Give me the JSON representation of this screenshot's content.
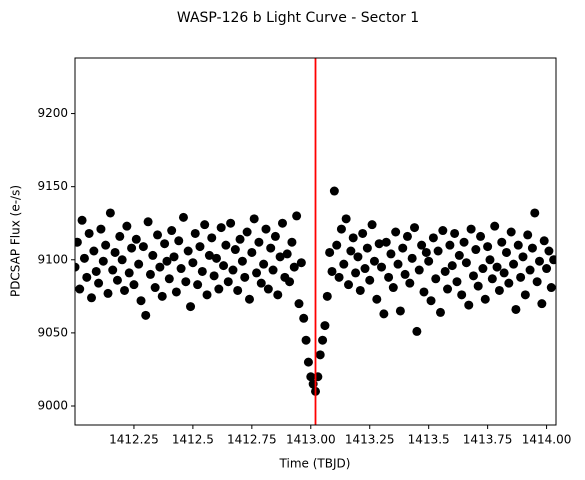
{
  "chart_data": {
    "type": "scatter",
    "title": "WASP-126 b Light Curve - Sector 1",
    "xlabel": "Time (TBJD)",
    "ylabel": "PDCSAP Flux (e-/s)",
    "color": "#000000",
    "vline": 1413.02,
    "vline_color": "#ff0000",
    "xlim": [
      1412.0,
      1414.04
    ],
    "ylim": [
      8987,
      9238
    ],
    "xticks": [
      1412.25,
      1412.5,
      1412.75,
      {
        "value": 1413.0,
        "label": "1413.00"
      },
      1413.25,
      1413.5,
      1413.75,
      {
        "value": 1414.0,
        "label": "1414.00"
      }
    ],
    "xtick_labels_fixed": null,
    "yticks": [
      9000,
      9050,
      9100,
      9150,
      9200
    ],
    "x": [
      1412.0,
      1412.01,
      1412.02,
      1412.03,
      1412.04,
      1412.05,
      1412.06,
      1412.07,
      1412.08,
      1412.09,
      1412.1,
      1412.11,
      1412.12,
      1412.13,
      1412.14,
      1412.15,
      1412.16,
      1412.17,
      1412.18,
      1412.19,
      1412.2,
      1412.21,
      1412.22,
      1412.23,
      1412.24,
      1412.25,
      1412.26,
      1412.27,
      1412.28,
      1412.29,
      1412.3,
      1412.31,
      1412.32,
      1412.33,
      1412.34,
      1412.35,
      1412.36,
      1412.37,
      1412.38,
      1412.39,
      1412.4,
      1412.41,
      1412.42,
      1412.43,
      1412.44,
      1412.45,
      1412.46,
      1412.47,
      1412.48,
      1412.49,
      1412.5,
      1412.51,
      1412.52,
      1412.53,
      1412.54,
      1412.55,
      1412.56,
      1412.57,
      1412.58,
      1412.59,
      1412.6,
      1412.61,
      1412.62,
      1412.63,
      1412.64,
      1412.65,
      1412.66,
      1412.67,
      1412.68,
      1412.69,
      1412.7,
      1412.71,
      1412.72,
      1412.73,
      1412.74,
      1412.75,
      1412.76,
      1412.77,
      1412.78,
      1412.79,
      1412.8,
      1412.81,
      1412.82,
      1412.83,
      1412.84,
      1412.85,
      1412.86,
      1412.87,
      1412.88,
      1412.89,
      1412.9,
      1412.91,
      1412.92,
      1412.93,
      1412.94,
      1412.95,
      1412.96,
      1412.97,
      1412.98,
      1412.99,
      1413.0,
      1413.01,
      1413.02,
      1413.03,
      1413.04,
      1413.05,
      1413.06,
      1413.07,
      1413.08,
      1413.09,
      1413.1,
      1413.11,
      1413.12,
      1413.13,
      1413.14,
      1413.15,
      1413.16,
      1413.17,
      1413.18,
      1413.19,
      1413.2,
      1413.21,
      1413.22,
      1413.23,
      1413.24,
      1413.25,
      1413.26,
      1413.27,
      1413.28,
      1413.29,
      1413.3,
      1413.31,
      1413.32,
      1413.33,
      1413.34,
      1413.35,
      1413.36,
      1413.37,
      1413.38,
      1413.39,
      1413.4,
      1413.41,
      1413.42,
      1413.43,
      1413.44,
      1413.45,
      1413.46,
      1413.47,
      1413.48,
      1413.49,
      1413.5,
      1413.51,
      1413.52,
      1413.53,
      1413.54,
      1413.55,
      1413.56,
      1413.57,
      1413.58,
      1413.59,
      1413.6,
      1413.61,
      1413.62,
      1413.63,
      1413.64,
      1413.65,
      1413.66,
      1413.67,
      1413.68,
      1413.69,
      1413.7,
      1413.71,
      1413.72,
      1413.73,
      1413.74,
      1413.75,
      1413.76,
      1413.77,
      1413.78,
      1413.79,
      1413.8,
      1413.81,
      1413.82,
      1413.83,
      1413.84,
      1413.85,
      1413.86,
      1413.87,
      1413.88,
      1413.89,
      1413.9,
      1413.91,
      1413.92,
      1413.93,
      1413.94,
      1413.95,
      1413.96,
      1413.97,
      1413.98,
      1413.99,
      1414.0,
      1414.01,
      1414.02,
      1414.03
    ],
    "values": [
      9095,
      9112,
      9080,
      9127,
      9101,
      9088,
      9118,
      9074,
      9106,
      9092,
      9084,
      9121,
      9099,
      9110,
      9077,
      9132,
      9093,
      9105,
      9086,
      9116,
      9100,
      9079,
      9123,
      9091,
      9108,
      9083,
      9114,
      9097,
      9072,
      9109,
      9062,
      9126,
      9090,
      9103,
      9081,
      9117,
      9095,
      9075,
      9111,
      9099,
      9087,
      9120,
      9102,
      9078,
      9113,
      9094,
      9129,
      9085,
      9106,
      9068,
      9098,
      9118,
      9083,
      9109,
      9092,
      9124,
      9076,
      9103,
      9115,
      9089,
      9101,
      9080,
      9122,
      9096,
      9110,
      9085,
      9125,
      9093,
      9107,
      9079,
      9114,
      9099,
      9088,
      9119,
      9073,
      9105,
      9128,
      9091,
      9112,
      9084,
      9097,
      9121,
      9080,
      9108,
      9093,
      9116,
      9076,
      9102,
      9125,
      9088,
      9104,
      9085,
      9112,
      9095,
      9130,
      9070,
      9098,
      9060,
      9045,
      9030,
      9020,
      9015,
      9010,
      9020,
      9035,
      9045,
      9055,
      9075,
      9105,
      9092,
      9147,
      9110,
      9088,
      9121,
      9097,
      9128,
      9083,
      9106,
      9115,
      9091,
      9102,
      9079,
      9118,
      9094,
      9108,
      9086,
      9124,
      9099,
      9073,
      9111,
      9095,
      9063,
      9112,
      9088,
      9104,
      9081,
      9119,
      9097,
      9065,
      9108,
      9090,
      9116,
      9084,
      9101,
      9122,
      9051,
      9093,
      9110,
      9078,
      9105,
      9099,
      9072,
      9115,
      9087,
      9106,
      9064,
      9120,
      9092,
      9080,
      9110,
      9096,
      9118,
      9085,
      9103,
      9076,
      9112,
      9098,
      9069,
      9121,
      9089,
      9107,
      9082,
      9116,
      9094,
      9073,
      9109,
      9100,
      9087,
      9123,
      9095,
      9079,
      9112,
      9091,
      9105,
      9084,
      9119,
      9097,
      9066,
      9110,
      9088,
      9102,
      9076,
      9117,
      9093,
      9108,
      9132,
      9085,
      9099,
      9070,
      9113,
      9094,
      9106,
      9081,
      9100
    ]
  }
}
